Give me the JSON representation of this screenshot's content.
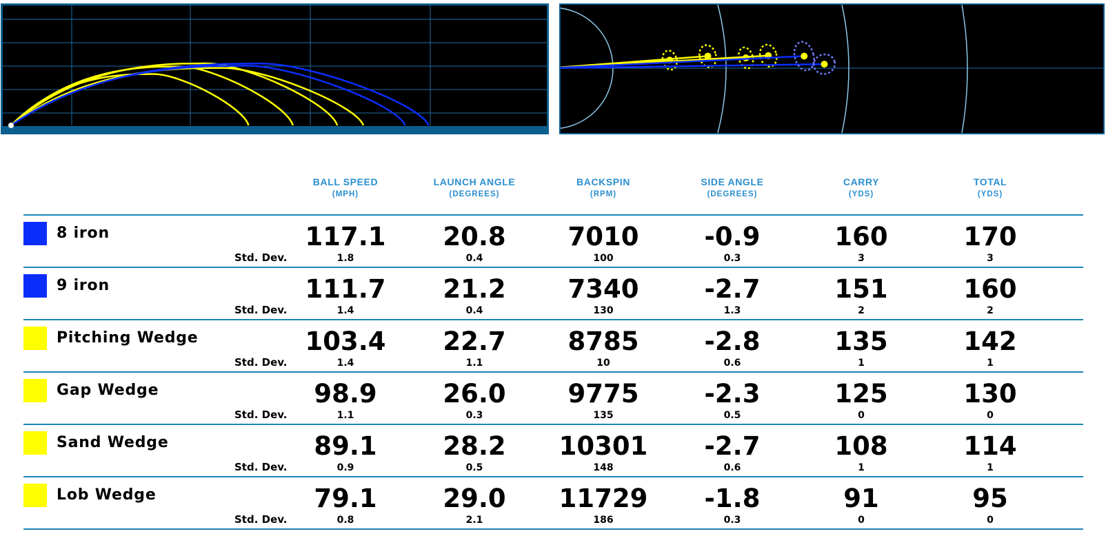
{
  "columns": [
    {
      "label": "BALL SPEED",
      "unit": "(MPH)"
    },
    {
      "label": "LAUNCH ANGLE",
      "unit": "(DEGREES)"
    },
    {
      "label": "BACKSPIN",
      "unit": "(RPM)"
    },
    {
      "label": "SIDE ANGLE",
      "unit": "(DEGREES)"
    },
    {
      "label": "CARRY",
      "unit": "(YDS)"
    },
    {
      "label": "TOTAL",
      "unit": "(YDS)"
    }
  ],
  "std_dev_label": "Std. Dev.",
  "colors": {
    "blue": "#0b2dfc",
    "yellow": "#ffff00",
    "accent": "#2a8fd0",
    "rule": "#1d86b4",
    "frame": "#0c5e8e"
  },
  "clubs": [
    {
      "name": "8 iron",
      "color": "#0b2dfc",
      "values": [
        "117.1",
        "20.8",
        "7010",
        "-0.9",
        "160",
        "170"
      ],
      "std": [
        "1.8",
        "0.4",
        "100",
        "0.3",
        "3",
        "3"
      ]
    },
    {
      "name": "9 iron",
      "color": "#0b2dfc",
      "values": [
        "111.7",
        "21.2",
        "7340",
        "-2.7",
        "151",
        "160"
      ],
      "std": [
        "1.4",
        "0.4",
        "130",
        "1.3",
        "2",
        "2"
      ]
    },
    {
      "name": "Pitching Wedge",
      "color": "#ffff00",
      "values": [
        "103.4",
        "22.7",
        "8785",
        "-2.8",
        "135",
        "142"
      ],
      "std": [
        "1.4",
        "1.1",
        "10",
        "0.6",
        "1",
        "1"
      ]
    },
    {
      "name": "Gap Wedge",
      "color": "#ffff00",
      "values": [
        "98.9",
        "26.0",
        "9775",
        "-2.3",
        "125",
        "130"
      ],
      "std": [
        "1.1",
        "0.3",
        "135",
        "0.5",
        "0",
        "0"
      ]
    },
    {
      "name": "Sand Wedge",
      "color": "#ffff00",
      "values": [
        "89.1",
        "28.2",
        "10301",
        "-2.7",
        "108",
        "114"
      ],
      "std": [
        "0.9",
        "0.5",
        "148",
        "0.6",
        "1",
        "1"
      ]
    },
    {
      "name": "Lob Wedge",
      "color": "#ffff00",
      "values": [
        "79.1",
        "29.0",
        "11729",
        "-1.8",
        "91",
        "95"
      ],
      "std": [
        "0.8",
        "2.1",
        "186",
        "0.3",
        "0",
        "0"
      ]
    }
  ]
}
